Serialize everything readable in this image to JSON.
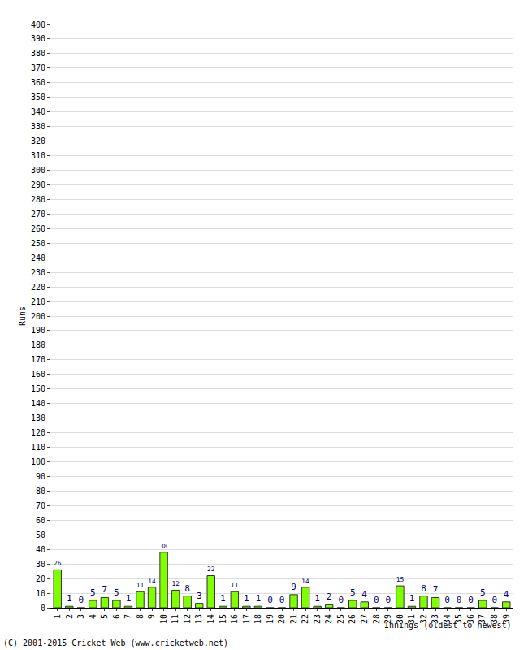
{
  "chart_data": {
    "type": "bar",
    "x_label": "Innings (oldest to newest)",
    "y_label": "Runs",
    "annotations": [
      "(C) 2001-2015 Cricket Web (www.cricketweb.net)"
    ],
    "categories": [
      "1",
      "2",
      "3",
      "4",
      "5",
      "6",
      "7",
      "8",
      "9",
      "10",
      "11",
      "12",
      "13",
      "14",
      "15",
      "16",
      "17",
      "18",
      "19",
      "20",
      "21",
      "22",
      "23",
      "24",
      "25",
      "26",
      "27",
      "28",
      "29",
      "30",
      "31",
      "32",
      "33",
      "34",
      "35",
      "36",
      "37",
      "38",
      "39"
    ],
    "values": [
      26,
      1,
      0,
      5,
      7,
      5,
      1,
      11,
      14,
      38,
      12,
      8,
      3,
      22,
      1,
      11,
      1,
      1,
      0,
      0,
      9,
      14,
      1,
      2,
      0,
      5,
      4,
      0,
      0,
      15,
      1,
      8,
      7,
      0,
      0,
      0,
      5,
      0,
      4
    ],
    "color": "#80ff00",
    "ylim": [
      0,
      400
    ],
    "yticks": [
      0,
      10,
      20,
      30,
      40,
      50,
      60,
      70,
      80,
      90,
      100,
      110,
      120,
      130,
      140,
      150,
      160,
      170,
      180,
      190,
      200,
      210,
      220,
      230,
      240,
      250,
      260,
      270,
      280,
      290,
      300,
      310,
      320,
      330,
      340,
      350,
      360,
      370,
      380,
      390,
      400
    ],
    "grid": true,
    "data_labels": true
  }
}
